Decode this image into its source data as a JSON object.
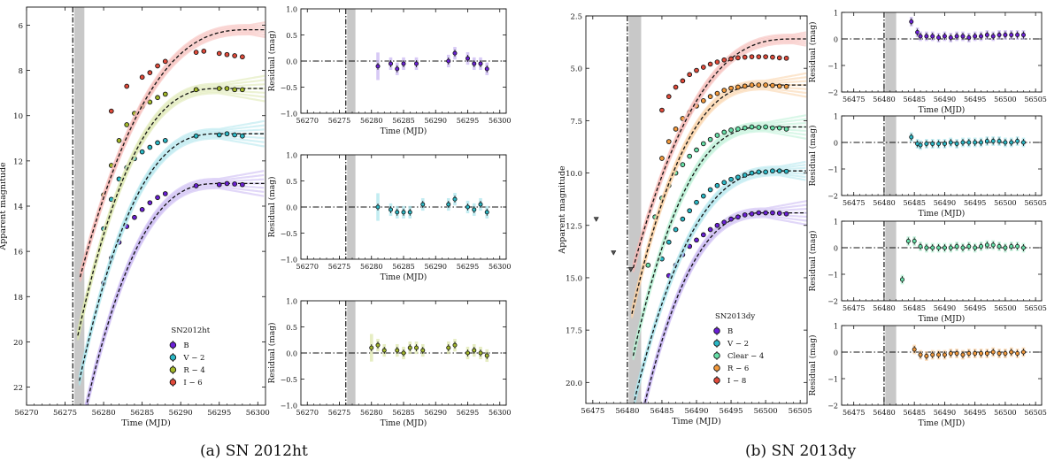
{
  "captions": {
    "a": "(a) SN 2012ht",
    "b": "(b) SN 2013dy"
  },
  "colors": {
    "B": "#6a1fd6",
    "V": "#2ab8c6",
    "Clear": "#67e0a8",
    "R": "#a3b82a",
    "I": "#e14a3a",
    "R_b": "#f39a3c",
    "bandB": "#c9b7f2",
    "bandV": "#aee6ec",
    "bandR": "#dde7ae",
    "bandI": "#f6b9b6",
    "bandClear": "#b9f0d6",
    "bandR_b": "#f9d2a6",
    "shade": "#c8c8c8"
  },
  "chart_data": [
    {
      "id": "a-main",
      "type": "line",
      "title": "",
      "xlabel": "Time (MJD)",
      "ylabel": "Apparent magnitude",
      "xlim": [
        56270,
        56301
      ],
      "ylim": [
        22.8,
        5.2
      ],
      "y_inverted": true,
      "xticks": [
        56270,
        56275,
        56280,
        56285,
        56290,
        56295,
        56300
      ],
      "xtick_labels": [
        "56270",
        "56275",
        "56280",
        "56285",
        "56290",
        "56295",
        "56300"
      ],
      "yticks": [
        6,
        8,
        10,
        12,
        14,
        16,
        18,
        20,
        22
      ],
      "ytick_labels": [
        "6",
        "8",
        "10",
        "12",
        "14",
        "16",
        "18",
        "20",
        "22"
      ],
      "vline": 56276,
      "shade": [
        56276.2,
        56277.5
      ],
      "legend_title": "SN2012ht",
      "series": [
        {
          "name": "B",
          "label": "B",
          "peak": 13.0,
          "tpeak": 56295,
          "t0": 56277,
          "curve": "B",
          "obs_x": [
            56280,
            56281,
            56282,
            56283,
            56284,
            56285,
            56286,
            56287,
            56288,
            56292,
            56295,
            56296,
            56297,
            56298
          ],
          "obs_y": [
            17.4,
            16.3,
            15.6,
            14.9,
            14.5,
            14.15,
            13.85,
            13.62,
            13.45,
            13.1,
            13.05,
            13.0,
            13.02,
            13.05
          ]
        },
        {
          "name": "V",
          "label": "V − 2",
          "peak": 10.8,
          "tpeak": 56295,
          "t0": 56276.8,
          "curve": "V",
          "obs_x": [
            56280,
            56281,
            56282,
            56283,
            56284,
            56285,
            56286,
            56287,
            56288,
            56292,
            56295,
            56296,
            56297,
            56298
          ],
          "obs_y": [
            15.0,
            13.7,
            12.8,
            12.3,
            11.9,
            11.6,
            11.4,
            11.2,
            11.1,
            10.9,
            10.85,
            10.8,
            10.85,
            10.9
          ]
        },
        {
          "name": "R",
          "label": "R − 4",
          "peak": 8.8,
          "tpeak": 56295,
          "t0": 56276.6,
          "curve": "R",
          "obs_x": [
            56280,
            56281,
            56282,
            56283,
            56284,
            56285,
            56286,
            56287,
            56288,
            56292,
            56295,
            56296,
            56297,
            56298
          ],
          "obs_y": [
            13.5,
            12.2,
            11.1,
            10.4,
            9.9,
            9.6,
            9.4,
            9.2,
            9.05,
            8.85,
            8.8,
            8.8,
            8.85,
            8.85
          ]
        },
        {
          "name": "I",
          "label": "I − 6",
          "peak": 6.2,
          "tpeak": 56299,
          "t0": 56276.9,
          "curve": "I",
          "obs_x": [
            56281,
            56283,
            56285,
            56286,
            56287,
            56288,
            56292,
            56293,
            56295,
            56296,
            56297,
            56298
          ],
          "obs_y": [
            9.8,
            8.7,
            8.3,
            8.1,
            7.8,
            7.6,
            7.2,
            7.15,
            7.25,
            7.3,
            7.35,
            7.4
          ]
        }
      ]
    },
    {
      "id": "a-res-1",
      "type": "scatter",
      "xlabel": "Time (MJD)",
      "ylabel": "Residual (mag)",
      "xlim": [
        56269,
        56301
      ],
      "ylim": [
        -1.0,
        1.0
      ],
      "xticks": [
        56270,
        56275,
        56280,
        56285,
        56290,
        56295,
        56300
      ],
      "xtick_labels": [
        "56270",
        "56275",
        "56280",
        "56285",
        "56290",
        "56295",
        "56300"
      ],
      "yticks": [
        -1.0,
        -0.5,
        0.0,
        0.5,
        1.0
      ],
      "ytick_labels": [
        "−1.0",
        "−0.5",
        "0.0",
        "0.5",
        "1.0"
      ],
      "vline": 56276,
      "shade": [
        56276.2,
        56277.5
      ],
      "band": "B",
      "x": [
        56281,
        56283,
        56284,
        56285,
        56287,
        56292,
        56293,
        56295,
        56296,
        56297,
        56298
      ],
      "y": [
        -0.1,
        -0.05,
        -0.15,
        -0.05,
        -0.05,
        0.0,
        0.15,
        0.05,
        -0.05,
        -0.05,
        -0.15
      ]
    },
    {
      "id": "a-res-2",
      "type": "scatter",
      "xlabel": "Time (MJD)",
      "ylabel": "Residual (mag)",
      "xlim": [
        56269,
        56301
      ],
      "ylim": [
        -1.0,
        1.0
      ],
      "xticks": [
        56270,
        56275,
        56280,
        56285,
        56290,
        56295,
        56300
      ],
      "xtick_labels": [
        "56270",
        "56275",
        "56280",
        "56285",
        "56290",
        "56295",
        "56300"
      ],
      "yticks": [
        -1.0,
        -0.5,
        0.0,
        0.5,
        1.0
      ],
      "ytick_labels": [
        "−1.0",
        "−0.5",
        "0.0",
        "0.5",
        "1.0"
      ],
      "vline": 56276,
      "shade": [
        56276.2,
        56277.5
      ],
      "band": "V",
      "x": [
        56281,
        56283,
        56284,
        56285,
        56286,
        56288,
        56292,
        56293,
        56295,
        56296,
        56297,
        56298
      ],
      "y": [
        0.0,
        -0.05,
        -0.1,
        -0.1,
        -0.1,
        0.05,
        0.05,
        0.15,
        0.0,
        -0.05,
        0.05,
        -0.1
      ]
    },
    {
      "id": "a-res-3",
      "type": "scatter",
      "xlabel": "Time (MJD)",
      "ylabel": "Residual (mag)",
      "xlim": [
        56269,
        56301
      ],
      "ylim": [
        -1.0,
        1.0
      ],
      "xticks": [
        56270,
        56275,
        56280,
        56285,
        56290,
        56295,
        56300
      ],
      "xtick_labels": [
        "56270",
        "56275",
        "56280",
        "56285",
        "56290",
        "56295",
        "56300"
      ],
      "yticks": [
        -1.0,
        -0.5,
        0.0,
        0.5,
        1.0
      ],
      "ytick_labels": [
        "−1.0",
        "−0.5",
        "0.0",
        "0.5",
        "1.0"
      ],
      "vline": 56276,
      "shade": [
        56276.2,
        56277.5
      ],
      "band": "R",
      "x": [
        56280,
        56281,
        56282,
        56284,
        56285,
        56286,
        56287,
        56288,
        56292,
        56293,
        56295,
        56296,
        56297,
        56298
      ],
      "y": [
        0.1,
        0.15,
        0.05,
        0.05,
        0.0,
        0.1,
        0.1,
        0.05,
        0.1,
        0.15,
        0.0,
        0.05,
        0.0,
        -0.05
      ]
    },
    {
      "id": "b-main",
      "type": "line",
      "title": "",
      "xlabel": "Time (MJD)",
      "ylabel": "Apparent magnitude",
      "xlim": [
        56474,
        56506
      ],
      "ylim": [
        21.0,
        2.5
      ],
      "y_inverted": true,
      "xticks": [
        56475,
        56480,
        56485,
        56490,
        56495,
        56500,
        56505
      ],
      "xtick_labels": [
        "56475",
        "56480",
        "56485",
        "56490",
        "56495",
        "56500",
        "56505"
      ],
      "yticks": [
        2.5,
        5.0,
        7.5,
        10.0,
        12.5,
        15.0,
        17.5,
        20.0
      ],
      "ytick_labels": [
        "2.5",
        "5.0",
        "7.5",
        "10.0",
        "12.5",
        "15.0",
        "17.5",
        "20.0"
      ],
      "vline": 56480,
      "shade": [
        56480.2,
        56482
      ],
      "legend_title": "SN2013dy",
      "upper_limits": [
        {
          "x": 56475.5,
          "y": 12.2
        },
        {
          "x": 56478,
          "y": 13.8
        },
        {
          "x": 56480.5,
          "y": 14.6
        }
      ],
      "series": [
        {
          "name": "B",
          "label": "B",
          "peak": 11.9,
          "tpeak": 56500,
          "t0": 56481.2,
          "curve": "B",
          "obs_x": [
            56486,
            56487,
            56488,
            56489,
            56490,
            56491,
            56492,
            56493,
            56494,
            56495,
            56496,
            56497,
            56498,
            56499,
            56500,
            56501,
            56502,
            56503
          ],
          "obs_y": [
            14.9,
            14.4,
            13.9,
            13.5,
            13.2,
            12.95,
            12.7,
            12.5,
            12.35,
            12.2,
            12.1,
            12.0,
            11.95,
            11.9,
            11.9,
            11.9,
            11.92,
            11.95
          ]
        },
        {
          "name": "V",
          "label": "V − 2",
          "peak": 9.9,
          "tpeak": 56502,
          "t0": 56481.0,
          "curve": "V",
          "obs_x": [
            56485,
            56486,
            56487,
            56488,
            56489,
            56490,
            56491,
            56492,
            56493,
            56494,
            56495,
            56496,
            56497,
            56498,
            56499,
            56500,
            56501,
            56502,
            56503
          ],
          "obs_y": [
            14.1,
            13.3,
            12.7,
            12.2,
            11.8,
            11.4,
            11.1,
            10.8,
            10.6,
            10.45,
            10.3,
            10.2,
            10.1,
            10.0,
            9.95,
            9.95,
            9.9,
            9.9,
            9.92
          ]
        },
        {
          "name": "Clear",
          "label": "Clear − 4",
          "peak": 7.8,
          "tpeak": 56500,
          "t0": 56480.8,
          "curve": "Clear",
          "obs_x": [
            56483,
            56484,
            56485,
            56486,
            56487,
            56488,
            56489,
            56490,
            56491,
            56492,
            56493,
            56494,
            56495,
            56496,
            56497,
            56498,
            56499,
            56500,
            56501,
            56502,
            56503
          ],
          "obs_y": [
            14.4,
            12.1,
            11.2,
            10.6,
            10.0,
            9.6,
            9.2,
            8.9,
            8.6,
            8.4,
            8.2,
            8.05,
            7.95,
            7.9,
            7.85,
            7.8,
            7.82,
            7.8,
            7.85,
            7.85,
            7.9
          ]
        },
        {
          "name": "R_b",
          "label": "R − 6",
          "peak": 5.8,
          "tpeak": 56500,
          "t0": 56480.6,
          "curve": "R_b",
          "obs_x": [
            56485,
            56486,
            56487,
            56488,
            56489,
            56490,
            56491,
            56492,
            56493,
            56494,
            56495,
            56496,
            56497,
            56498,
            56499,
            56500,
            56501,
            56502,
            56503
          ],
          "obs_y": [
            9.3,
            8.5,
            7.9,
            7.4,
            7.1,
            6.8,
            6.55,
            6.35,
            6.2,
            6.05,
            5.95,
            5.9,
            5.85,
            5.8,
            5.8,
            5.8,
            5.82,
            5.85,
            5.87
          ]
        },
        {
          "name": "I",
          "label": "I − 8",
          "peak": 3.6,
          "tpeak": 56504,
          "t0": 56480.8,
          "curve": "I",
          "obs_x": [
            56485,
            56486,
            56487,
            56488,
            56489,
            56490,
            56491,
            56492,
            56493,
            56494,
            56495,
            56496,
            56497,
            56498,
            56499,
            56500,
            56501,
            56502,
            56503
          ],
          "obs_y": [
            7.0,
            6.35,
            5.9,
            5.6,
            5.3,
            5.1,
            4.95,
            4.8,
            4.7,
            4.6,
            4.55,
            4.5,
            4.47,
            4.45,
            4.45,
            4.45,
            4.47,
            4.5,
            4.52
          ]
        }
      ]
    },
    {
      "id": "b-res-1",
      "type": "scatter",
      "xlabel": "Time (MJD)",
      "ylabel": "Residual (mag)",
      "xlim": [
        56473,
        56506
      ],
      "ylim": [
        -2,
        1
      ],
      "xticks": [
        56475,
        56480,
        56485,
        56490,
        56495,
        56500,
        56505
      ],
      "xtick_labels": [
        "56475",
        "56480",
        "56485",
        "56490",
        "56495",
        "56500",
        "56505"
      ],
      "yticks": [
        -2,
        -1,
        0,
        1
      ],
      "ytick_labels": [
        "−2",
        "−1",
        "0",
        "1"
      ],
      "vline": 56480,
      "shade": [
        56480.2,
        56482
      ],
      "band": "B",
      "x": [
        56484.5,
        56485.5,
        56486,
        56487,
        56488,
        56489,
        56490,
        56491,
        56492,
        56493,
        56494,
        56495,
        56496,
        56497,
        56498,
        56499,
        56500,
        56501,
        56502,
        56503
      ],
      "y": [
        0.65,
        0.25,
        0.1,
        0.1,
        0.1,
        0.05,
        0.1,
        0.05,
        0.1,
        0.1,
        0.05,
        0.1,
        0.1,
        0.15,
        0.1,
        0.15,
        0.15,
        0.15,
        0.15,
        0.15
      ]
    },
    {
      "id": "b-res-2",
      "type": "scatter",
      "xlabel": "Time (MJD)",
      "ylabel": "Residual (mag)",
      "xlim": [
        56473,
        56506
      ],
      "ylim": [
        -2,
        1
      ],
      "xticks": [
        56475,
        56480,
        56485,
        56490,
        56495,
        56500,
        56505
      ],
      "xtick_labels": [
        "56475",
        "56480",
        "56485",
        "56490",
        "56495",
        "56500",
        "56505"
      ],
      "yticks": [
        -2,
        -1,
        0,
        1
      ],
      "ytick_labels": [
        "−2",
        "−1",
        "0",
        "1"
      ],
      "vline": 56480,
      "shade": [
        56480.2,
        56482
      ],
      "band": "V",
      "x": [
        56484.5,
        56485.5,
        56486,
        56487,
        56488,
        56489,
        56490,
        56491,
        56492,
        56493,
        56494,
        56495,
        56496,
        56497,
        56498,
        56499,
        56500,
        56501,
        56502,
        56503
      ],
      "y": [
        0.2,
        -0.05,
        -0.1,
        -0.05,
        -0.05,
        -0.05,
        -0.05,
        0.0,
        -0.05,
        0.0,
        0.0,
        0.0,
        0.0,
        0.05,
        0.05,
        0.05,
        0.0,
        0.0,
        0.05,
        0.0
      ]
    },
    {
      "id": "b-res-3",
      "type": "scatter",
      "xlabel": "Time (MJD)",
      "ylabel": "Residual (mag)",
      "xlim": [
        56473,
        56506
      ],
      "ylim": [
        -2,
        1
      ],
      "xticks": [
        56475,
        56480,
        56485,
        56490,
        56495,
        56500,
        56505
      ],
      "xtick_labels": [
        "56475",
        "56480",
        "56485",
        "56490",
        "56495",
        "56500",
        "56505"
      ],
      "yticks": [
        -2,
        -1,
        0,
        1
      ],
      "ytick_labels": [
        "−2",
        "−1",
        "0",
        "1"
      ],
      "vline": 56480,
      "shade": [
        56480.2,
        56482
      ],
      "band": "Clear",
      "x": [
        56483,
        56484,
        56485,
        56486,
        56487,
        56488,
        56489,
        56490,
        56491,
        56492,
        56493,
        56494,
        56495,
        56496,
        56497,
        56498,
        56499,
        56500,
        56501,
        56502,
        56503
      ],
      "y": [
        -1.2,
        0.25,
        0.25,
        0.05,
        0.0,
        0.0,
        0.0,
        0.0,
        0.0,
        0.05,
        0.0,
        0.05,
        0.0,
        0.05,
        0.1,
        0.1,
        0.05,
        0.0,
        0.05,
        0.05,
        0.0
      ]
    },
    {
      "id": "b-res-4",
      "type": "scatter",
      "xlabel": "Time (MJD)",
      "ylabel": "Residual (mag)",
      "xlim": [
        56473,
        56506
      ],
      "ylim": [
        -2,
        1
      ],
      "xticks": [
        56475,
        56480,
        56485,
        56490,
        56495,
        56500,
        56505
      ],
      "xtick_labels": [
        "56475",
        "56480",
        "56485",
        "56490",
        "56495",
        "56500",
        "56505"
      ],
      "yticks": [
        -2,
        -1,
        0,
        1
      ],
      "ytick_labels": [
        "−2",
        "−1",
        "0",
        "1"
      ],
      "vline": 56480,
      "shade": [
        56480.2,
        56482
      ],
      "band": "R_b",
      "x": [
        56485,
        56486,
        56487,
        56488,
        56489,
        56490,
        56491,
        56492,
        56493,
        56494,
        56495,
        56496,
        56497,
        56498,
        56499,
        56500,
        56501,
        56502,
        56503
      ],
      "y": [
        0.1,
        -0.1,
        -0.15,
        -0.1,
        -0.1,
        -0.1,
        -0.05,
        -0.05,
        -0.1,
        -0.05,
        -0.05,
        -0.05,
        -0.05,
        0.0,
        -0.05,
        -0.05,
        0.0,
        -0.05,
        0.0
      ]
    }
  ]
}
